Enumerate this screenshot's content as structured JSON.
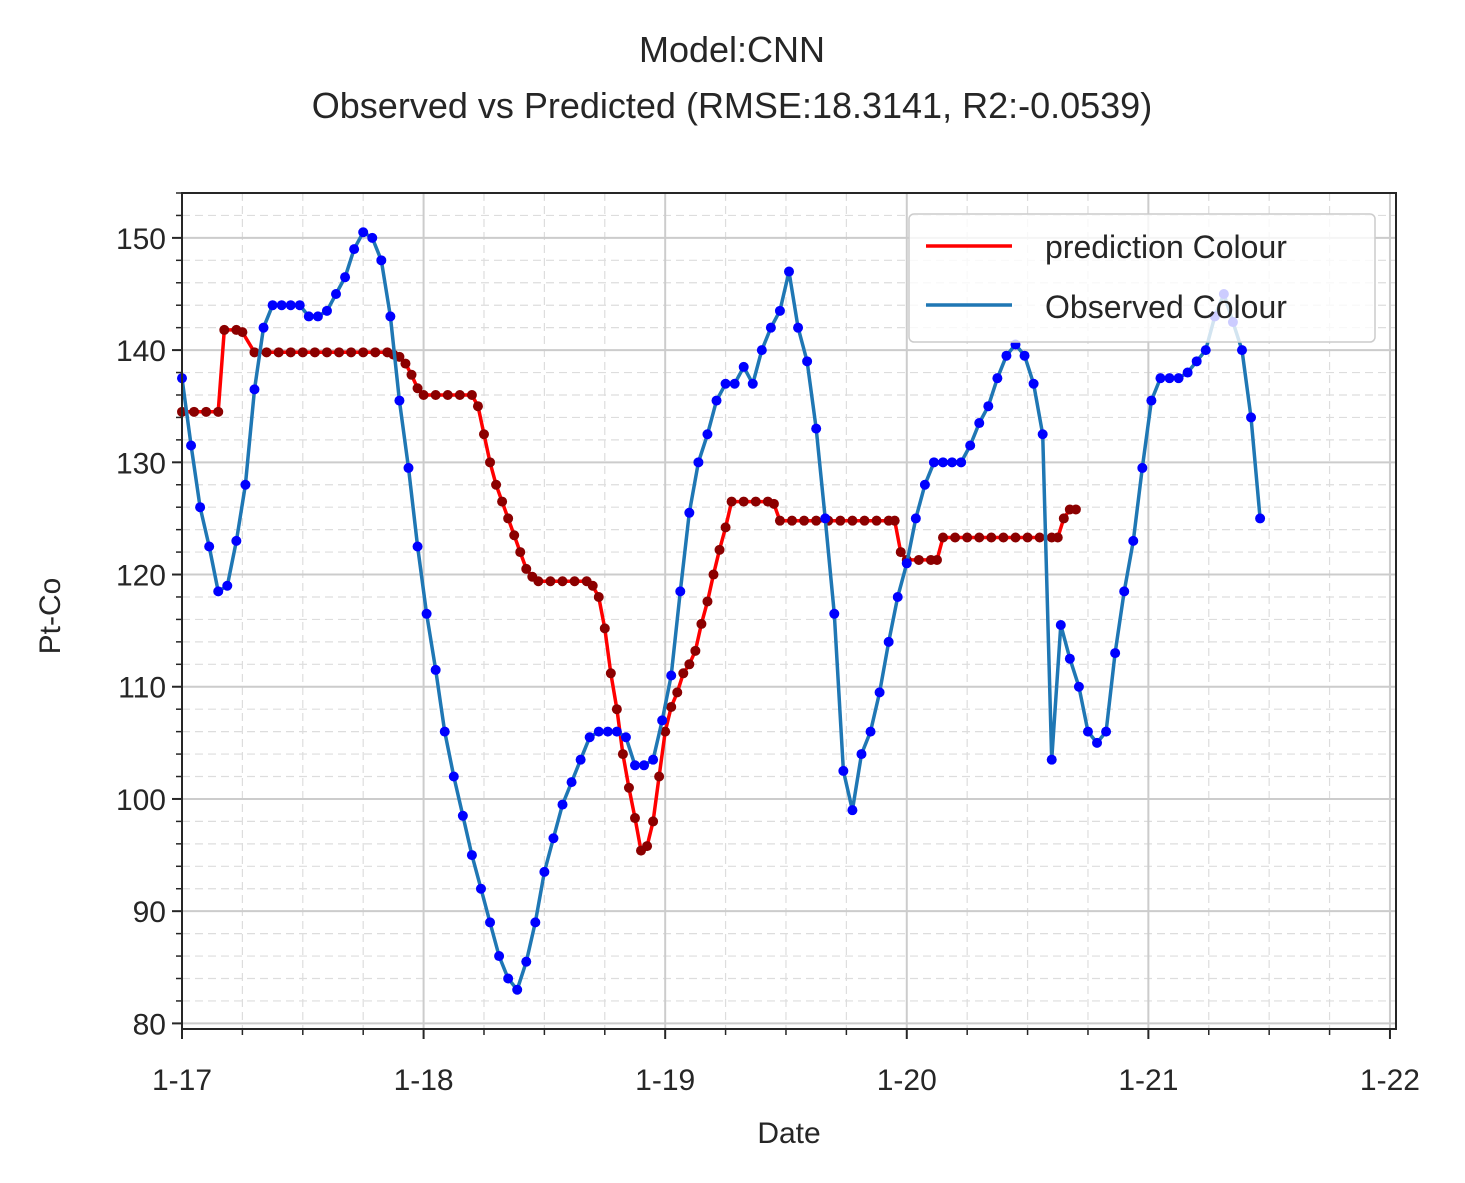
{
  "chart_data": {
    "type": "line",
    "title": "Model:CNN",
    "subtitle": "Observed vs Predicted (RMSE:18.3141, R2:-0.0539)",
    "xlabel": "Date",
    "ylabel": "Pt-Co",
    "xlim": [
      0,
      201
    ],
    "ylim": [
      79.5,
      154
    ],
    "x_ticks": [
      {
        "x": 0,
        "label": "1-17"
      },
      {
        "x": 40,
        "label": "1-18"
      },
      {
        "x": 80,
        "label": "1-19"
      },
      {
        "x": 120,
        "label": "1-20"
      },
      {
        "x": 160,
        "label": "1-21"
      },
      {
        "x": 200,
        "label": "1-22"
      }
    ],
    "y_ticks": [
      80,
      90,
      100,
      110,
      120,
      130,
      140,
      150
    ],
    "grid": true,
    "legend_position": "top-right",
    "series": [
      {
        "name": "prediction Colour",
        "color": "#ff0000",
        "marker_color": "#8b0000",
        "points": [
          [
            0,
            134.5
          ],
          [
            2,
            134.5
          ],
          [
            4,
            134.5
          ],
          [
            6,
            134.5
          ],
          [
            7,
            141.8
          ],
          [
            9,
            141.8
          ],
          [
            10,
            141.6
          ],
          [
            12,
            139.8
          ],
          [
            14,
            139.8
          ],
          [
            16,
            139.8
          ],
          [
            18,
            139.8
          ],
          [
            20,
            139.8
          ],
          [
            22,
            139.8
          ],
          [
            24,
            139.8
          ],
          [
            26,
            139.8
          ],
          [
            28,
            139.8
          ],
          [
            30,
            139.8
          ],
          [
            32,
            139.8
          ],
          [
            34,
            139.8
          ],
          [
            35,
            139.6
          ],
          [
            36,
            139.4
          ],
          [
            37,
            138.8
          ],
          [
            38,
            137.8
          ],
          [
            39,
            136.6
          ],
          [
            40,
            136.0
          ],
          [
            42,
            136.0
          ],
          [
            44,
            136.0
          ],
          [
            46,
            136.0
          ],
          [
            48,
            136.0
          ],
          [
            49,
            135.0
          ],
          [
            50,
            132.5
          ],
          [
            51,
            130.0
          ],
          [
            52,
            128.0
          ],
          [
            53,
            126.5
          ],
          [
            54,
            125.0
          ],
          [
            55,
            123.5
          ],
          [
            56,
            122.0
          ],
          [
            57,
            120.5
          ],
          [
            58,
            119.8
          ],
          [
            59,
            119.4
          ],
          [
            61,
            119.4
          ],
          [
            63,
            119.4
          ],
          [
            65,
            119.4
          ],
          [
            67,
            119.4
          ],
          [
            68,
            119.0
          ],
          [
            69,
            118.0
          ],
          [
            70,
            115.2
          ],
          [
            71,
            111.2
          ],
          [
            72,
            108.0
          ],
          [
            73,
            104.0
          ],
          [
            74,
            101.0
          ],
          [
            75,
            98.3
          ],
          [
            76,
            95.4
          ],
          [
            77,
            95.8
          ],
          [
            78,
            98.0
          ],
          [
            79,
            102.0
          ],
          [
            80,
            106.0
          ],
          [
            81,
            108.2
          ],
          [
            82,
            109.5
          ],
          [
            83,
            111.2
          ],
          [
            84,
            112.0
          ],
          [
            85,
            113.2
          ],
          [
            86,
            115.6
          ],
          [
            87,
            117.6
          ],
          [
            88,
            120.0
          ],
          [
            89,
            122.2
          ],
          [
            90,
            124.2
          ],
          [
            91,
            126.5
          ],
          [
            93,
            126.5
          ],
          [
            95,
            126.5
          ],
          [
            97,
            126.5
          ],
          [
            98,
            126.3
          ],
          [
            99,
            124.8
          ],
          [
            101,
            124.8
          ],
          [
            103,
            124.8
          ],
          [
            105,
            124.8
          ],
          [
            107,
            124.8
          ],
          [
            109,
            124.8
          ],
          [
            111,
            124.8
          ],
          [
            113,
            124.8
          ],
          [
            115,
            124.8
          ],
          [
            117,
            124.8
          ],
          [
            118,
            124.8
          ],
          [
            119,
            122.0
          ],
          [
            120,
            121.3
          ],
          [
            122,
            121.3
          ],
          [
            124,
            121.3
          ],
          [
            125,
            121.3
          ],
          [
            126,
            123.3
          ],
          [
            128,
            123.3
          ],
          [
            130,
            123.3
          ],
          [
            132,
            123.3
          ],
          [
            134,
            123.3
          ],
          [
            136,
            123.3
          ],
          [
            138,
            123.3
          ],
          [
            140,
            123.3
          ],
          [
            142,
            123.3
          ],
          [
            144,
            123.3
          ],
          [
            145,
            123.3
          ],
          [
            146,
            125.0
          ],
          [
            147,
            125.8
          ],
          [
            148,
            125.8
          ]
        ]
      },
      {
        "name": "Observed Colour",
        "color": "#1f77b4",
        "marker_color": "#0000ff",
        "points": [
          [
            0,
            137.5
          ],
          [
            1.5,
            131.5
          ],
          [
            3,
            126.0
          ],
          [
            4.5,
            122.5
          ],
          [
            6,
            118.5
          ],
          [
            7.5,
            119.0
          ],
          [
            9,
            123.0
          ],
          [
            10.5,
            128.0
          ],
          [
            12,
            136.5
          ],
          [
            13.5,
            142.0
          ],
          [
            15,
            144.0
          ],
          [
            16.5,
            144.0
          ],
          [
            18,
            144.0
          ],
          [
            19.5,
            144.0
          ],
          [
            21,
            143.0
          ],
          [
            22.5,
            143.0
          ],
          [
            24,
            143.5
          ],
          [
            25.5,
            145.0
          ],
          [
            27,
            146.5
          ],
          [
            28.5,
            149.0
          ],
          [
            30,
            150.5
          ],
          [
            31.5,
            150.0
          ],
          [
            33,
            148.0
          ],
          [
            34.5,
            143.0
          ],
          [
            36,
            135.5
          ],
          [
            37.5,
            129.5
          ],
          [
            39,
            122.5
          ],
          [
            40.5,
            116.5
          ],
          [
            42,
            111.5
          ],
          [
            43.5,
            106.0
          ],
          [
            45,
            102.0
          ],
          [
            46.5,
            98.5
          ],
          [
            48,
            95.0
          ],
          [
            49.5,
            92.0
          ],
          [
            51,
            89.0
          ],
          [
            52.5,
            86.0
          ],
          [
            54,
            84.0
          ],
          [
            55.5,
            83.0
          ],
          [
            57,
            85.5
          ],
          [
            58.5,
            89.0
          ],
          [
            60,
            93.5
          ],
          [
            61.5,
            96.5
          ],
          [
            63,
            99.5
          ],
          [
            64.5,
            101.5
          ],
          [
            66,
            103.5
          ],
          [
            67.5,
            105.5
          ],
          [
            69,
            106.0
          ],
          [
            70.5,
            106.0
          ],
          [
            72,
            106.0
          ],
          [
            73.5,
            105.5
          ],
          [
            75,
            103.0
          ],
          [
            76.5,
            103.0
          ],
          [
            78,
            103.5
          ],
          [
            79.5,
            107.0
          ],
          [
            81,
            111.0
          ],
          [
            82.5,
            118.5
          ],
          [
            84,
            125.5
          ],
          [
            85.5,
            130.0
          ],
          [
            87,
            132.5
          ],
          [
            88.5,
            135.5
          ],
          [
            90,
            137.0
          ],
          [
            91.5,
            137.0
          ],
          [
            93,
            138.5
          ],
          [
            94.5,
            137.0
          ],
          [
            96,
            140.0
          ],
          [
            97.5,
            142.0
          ],
          [
            99,
            143.5
          ],
          [
            100.5,
            147.0
          ],
          [
            102,
            142.0
          ],
          [
            103.5,
            139.0
          ],
          [
            105,
            133.0
          ],
          [
            106.5,
            125.0
          ],
          [
            108,
            116.5
          ],
          [
            109.5,
            102.5
          ],
          [
            111,
            99.0
          ],
          [
            112.5,
            104.0
          ],
          [
            114,
            106.0
          ],
          [
            115.5,
            109.5
          ],
          [
            117,
            114.0
          ],
          [
            118.5,
            118.0
          ],
          [
            120,
            121.0
          ],
          [
            121.5,
            125.0
          ],
          [
            123,
            128.0
          ],
          [
            124.5,
            130.0
          ],
          [
            126,
            130.0
          ],
          [
            127.5,
            130.0
          ],
          [
            129,
            130.0
          ],
          [
            130.5,
            131.5
          ],
          [
            132,
            133.5
          ],
          [
            133.5,
            135.0
          ],
          [
            135,
            137.5
          ],
          [
            136.5,
            139.5
          ],
          [
            138,
            140.5
          ],
          [
            139.5,
            139.5
          ],
          [
            141,
            137.0
          ],
          [
            142.5,
            132.5
          ],
          [
            144,
            103.5
          ],
          [
            145.5,
            115.5
          ],
          [
            147,
            112.5
          ],
          [
            148.5,
            110.0
          ],
          [
            150,
            106.0
          ],
          [
            151.5,
            105.0
          ],
          [
            153,
            106.0
          ],
          [
            154.5,
            113.0
          ],
          [
            156,
            118.5
          ],
          [
            157.5,
            123.0
          ],
          [
            159,
            129.5
          ],
          [
            160.5,
            135.5
          ],
          [
            162,
            137.5
          ],
          [
            163.5,
            137.5
          ],
          [
            165,
            137.5
          ],
          [
            166.5,
            138.0
          ],
          [
            168,
            139.0
          ],
          [
            169.5,
            140.0
          ],
          [
            171,
            143.0
          ],
          [
            172.5,
            145.0
          ],
          [
            174,
            142.5
          ],
          [
            175.5,
            140.0
          ],
          [
            177,
            134.0
          ],
          [
            178.5,
            125.0
          ]
        ]
      }
    ]
  }
}
